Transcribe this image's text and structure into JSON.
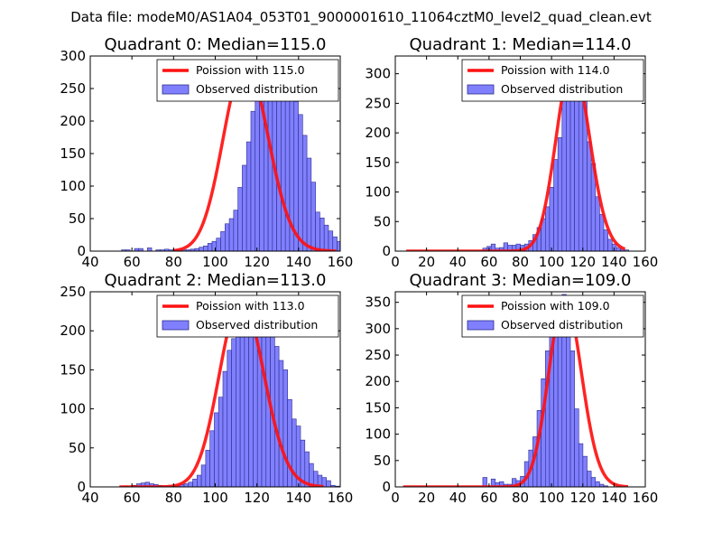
{
  "figure": {
    "suptitle": "Data file: modeM0/AS1A04_053T01_9000001610_11064cztM0_level2_quad_clean.evt"
  },
  "colors": {
    "bar_fill": "#8080ff",
    "bar_edge": "#2b2b8c",
    "curve": "#ff1010",
    "axis": "#000000"
  },
  "chart_data": [
    {
      "type": "bar",
      "title": "Quadrant 0: Median=115.0",
      "legend": [
        "Poission with 115.0",
        "Observed distribution"
      ],
      "legend_position": "top-right",
      "xlim": [
        40,
        160
      ],
      "ylim": [
        0,
        300
      ],
      "xticks": [
        40,
        60,
        80,
        100,
        120,
        140,
        160
      ],
      "yticks": [
        0,
        50,
        100,
        150,
        200,
        250,
        300
      ],
      "poisson_lambda": 115,
      "curve_peak": 290,
      "curve_x_range": [
        80,
        158
      ],
      "bin_start": 55,
      "bin_width": 2.07,
      "values": [
        2,
        2,
        0,
        4,
        4,
        0,
        5,
        0,
        2,
        2,
        3,
        2,
        2,
        2,
        2,
        2,
        3,
        4,
        6,
        8,
        12,
        15,
        20,
        30,
        42,
        50,
        63,
        98,
        132,
        168,
        215,
        240,
        265,
        287,
        263,
        265,
        282,
        287,
        272,
        248,
        230,
        210,
        178,
        143,
        106,
        60,
        51,
        40,
        31,
        22,
        15,
        10,
        6,
        4,
        3,
        2
      ]
    },
    {
      "type": "bar",
      "title": "Quadrant 1: Median=114.0",
      "legend": [
        "Poission with 114.0",
        "Observed distribution"
      ],
      "legend_position": "top-right",
      "xlim": [
        0,
        160
      ],
      "ylim": [
        0,
        330
      ],
      "xticks": [
        0,
        20,
        40,
        60,
        80,
        100,
        120,
        140,
        160
      ],
      "yticks": [
        0,
        50,
        100,
        150,
        200,
        250,
        300
      ],
      "poisson_lambda": 114,
      "curve_peak": 318,
      "curve_x_range": [
        7,
        147
      ],
      "bin_start": 56,
      "bin_width": 2.67,
      "values": [
        5,
        8,
        12,
        5,
        6,
        14,
        10,
        10,
        12,
        10,
        12,
        18,
        28,
        40,
        55,
        75,
        108,
        155,
        192,
        262,
        267,
        322,
        305,
        278,
        265,
        185,
        148,
        92,
        62,
        36,
        20,
        12,
        6,
        3,
        2
      ]
    },
    {
      "type": "bar",
      "title": "Quadrant 2: Median=113.0",
      "legend": [
        "Poission with 113.0",
        "Observed distribution"
      ],
      "legend_position": "top-right",
      "xlim": [
        40,
        160
      ],
      "ylim": [
        0,
        250
      ],
      "xticks": [
        40,
        60,
        80,
        100,
        120,
        140,
        160
      ],
      "yticks": [
        0,
        50,
        100,
        150,
        200,
        250
      ],
      "poisson_lambda": 113,
      "curve_peak": 240,
      "curve_x_range": [
        54,
        152
      ],
      "bin_start": 54,
      "bin_width": 2.07,
      "values": [
        0,
        1,
        0,
        2,
        4,
        5,
        6,
        4,
        3,
        2,
        1,
        1,
        1,
        2,
        3,
        4,
        6,
        10,
        15,
        28,
        47,
        72,
        95,
        115,
        148,
        175,
        190,
        207,
        215,
        235,
        232,
        242,
        235,
        222,
        212,
        200,
        180,
        162,
        150,
        112,
        87,
        78,
        60,
        45,
        30,
        20,
        15,
        12,
        8,
        2,
        1
      ]
    },
    {
      "type": "bar",
      "title": "Quadrant 3: Median=109.0",
      "legend": [
        "Poission with 109.0",
        "Observed distribution"
      ],
      "legend_position": "top-right",
      "xlim": [
        0,
        160
      ],
      "ylim": [
        0,
        370
      ],
      "xticks": [
        0,
        20,
        40,
        60,
        80,
        100,
        120,
        140,
        160
      ],
      "yticks": [
        0,
        50,
        100,
        150,
        200,
        250,
        300,
        350
      ],
      "poisson_lambda": 109,
      "curve_peak": 358,
      "curve_x_range": [
        5,
        149
      ],
      "bin_start": 56,
      "bin_width": 2.67,
      "values": [
        18,
        0,
        15,
        8,
        10,
        5,
        5,
        16,
        12,
        20,
        48,
        70,
        95,
        145,
        205,
        258,
        310,
        350,
        355,
        365,
        352,
        258,
        148,
        82,
        58,
        30,
        18,
        10,
        5,
        2
      ]
    }
  ]
}
